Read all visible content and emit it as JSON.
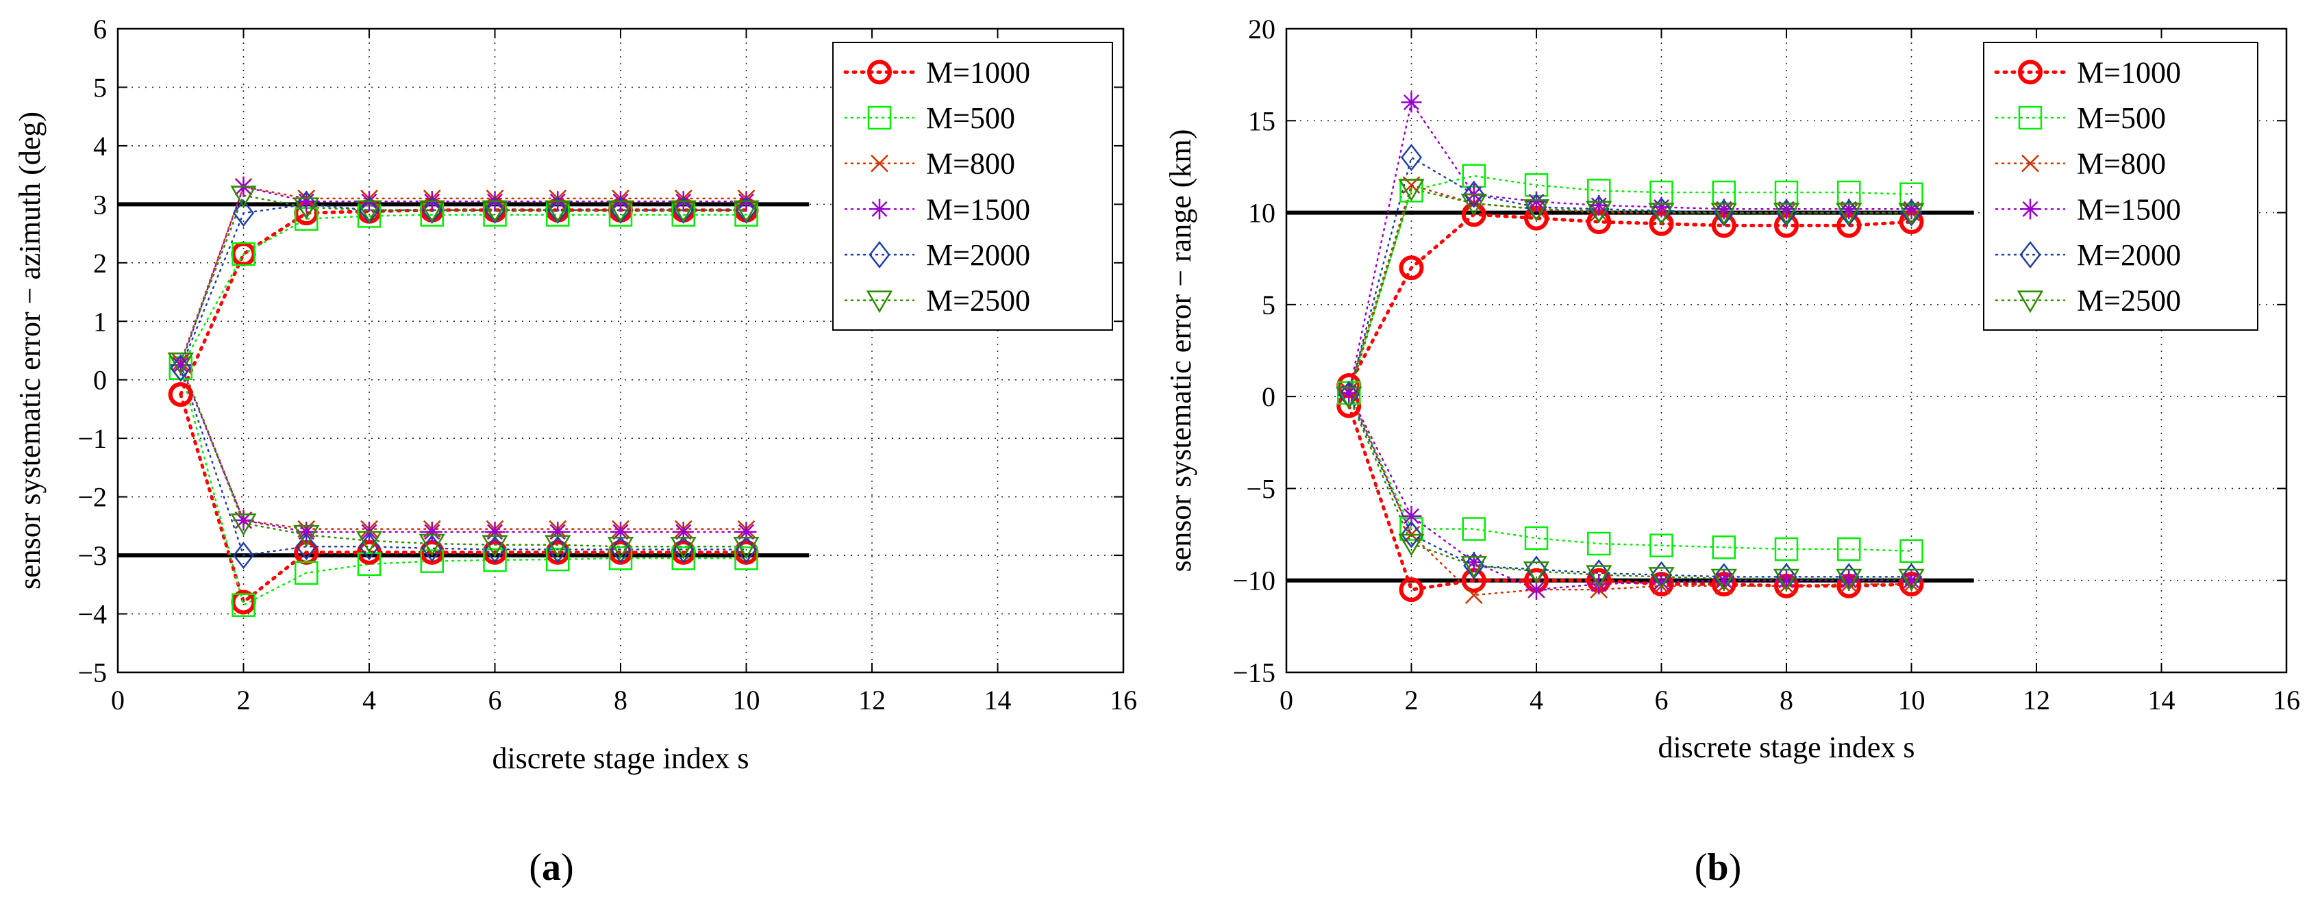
{
  "chart_data": [
    {
      "type": "line",
      "panel": "a",
      "caption": "(a)",
      "xlabel": "discrete stage index s",
      "ylabel": "sensor systematic error − azimuth (deg)",
      "xlim": [
        0,
        16
      ],
      "ylim": [
        -5,
        6
      ],
      "xticks": [
        0,
        2,
        4,
        6,
        8,
        10,
        12,
        14,
        16
      ],
      "yticks": [
        -5,
        -4,
        -3,
        -2,
        -1,
        0,
        1,
        2,
        3,
        4,
        5,
        6
      ],
      "ytick_labels": [
        "−5",
        "−4",
        "−3",
        "−2",
        "−1",
        "0",
        "1",
        "2",
        "3",
        "4",
        "5",
        "6"
      ],
      "grid": true,
      "legend_position": "top-right",
      "reference_lines": [
        {
          "y": 3,
          "x": [
            0,
            11
          ]
        },
        {
          "y": -3,
          "x": [
            0,
            11
          ]
        }
      ],
      "x": [
        1,
        2,
        3,
        4,
        5,
        6,
        7,
        8,
        9,
        10
      ],
      "series": [
        {
          "name": "M=1000",
          "color": "#ff0000",
          "marker": "circle",
          "upper": [
            -0.25,
            2.15,
            2.85,
            2.88,
            2.9,
            2.9,
            2.9,
            2.9,
            2.9,
            2.9
          ],
          "lower": [
            -0.25,
            -3.8,
            -2.95,
            -2.95,
            -2.95,
            -2.95,
            -2.95,
            -2.95,
            -2.95,
            -2.95
          ]
        },
        {
          "name": "M=500",
          "color": "#00ee00",
          "marker": "square",
          "upper": [
            0.2,
            2.15,
            2.75,
            2.8,
            2.82,
            2.82,
            2.82,
            2.82,
            2.82,
            2.82
          ],
          "lower": [
            0.2,
            -3.85,
            -3.3,
            -3.15,
            -3.1,
            -3.08,
            -3.07,
            -3.05,
            -3.05,
            -3.05
          ]
        },
        {
          "name": "M=800",
          "color": "#cc3300",
          "marker": "x",
          "upper": [
            0.3,
            3.3,
            3.1,
            3.1,
            3.1,
            3.1,
            3.1,
            3.1,
            3.1,
            3.1
          ],
          "lower": [
            0.3,
            -2.4,
            -2.55,
            -2.55,
            -2.55,
            -2.55,
            -2.55,
            -2.55,
            -2.55,
            -2.55
          ]
        },
        {
          "name": "M=1500",
          "color": "#9900cc",
          "marker": "star",
          "upper": [
            0.25,
            3.3,
            3.05,
            3.05,
            3.05,
            3.05,
            3.05,
            3.05,
            3.05,
            3.05
          ],
          "lower": [
            0.25,
            -2.4,
            -2.6,
            -2.6,
            -2.6,
            -2.6,
            -2.6,
            -2.6,
            -2.6,
            -2.6
          ]
        },
        {
          "name": "M=2000",
          "color": "#1f3fa6",
          "marker": "diamond",
          "upper": [
            0.2,
            2.85,
            3.0,
            2.9,
            2.9,
            2.9,
            2.9,
            2.9,
            2.9,
            2.9
          ],
          "lower": [
            0.2,
            -3.0,
            -2.85,
            -2.85,
            -2.88,
            -2.9,
            -2.9,
            -2.9,
            -2.9,
            -2.9
          ]
        },
        {
          "name": "M=2500",
          "color": "#2e8b00",
          "marker": "triangle-down",
          "upper": [
            0.3,
            3.15,
            2.95,
            2.9,
            2.9,
            2.9,
            2.9,
            2.9,
            2.9,
            2.9
          ],
          "lower": [
            0.3,
            -2.45,
            -2.65,
            -2.75,
            -2.8,
            -2.82,
            -2.82,
            -2.85,
            -2.85,
            -2.85
          ]
        }
      ]
    },
    {
      "type": "line",
      "panel": "b",
      "caption": "(b)",
      "xlabel": "discrete stage index s",
      "ylabel": "sensor systematic error − range (km)",
      "xlim": [
        0,
        16
      ],
      "ylim": [
        -15,
        20
      ],
      "xticks": [
        0,
        2,
        4,
        6,
        8,
        10,
        12,
        14,
        16
      ],
      "yticks": [
        -15,
        -10,
        -5,
        0,
        5,
        10,
        15,
        20
      ],
      "ytick_labels": [
        "−15",
        "−10",
        "−5",
        "0",
        "5",
        "10",
        "15",
        "20"
      ],
      "grid": true,
      "legend_position": "top-right",
      "reference_lines": [
        {
          "y": 10,
          "x": [
            0,
            11
          ]
        },
        {
          "y": -10,
          "x": [
            0,
            11
          ]
        }
      ],
      "x": [
        1,
        2,
        3,
        4,
        5,
        6,
        7,
        8,
        9,
        10
      ],
      "series": [
        {
          "name": "M=1000",
          "color": "#ff0000",
          "marker": "circle",
          "upper": [
            0.6,
            7.0,
            9.9,
            9.7,
            9.5,
            9.4,
            9.3,
            9.3,
            9.3,
            9.5
          ],
          "lower": [
            -0.5,
            -10.5,
            -10.0,
            -10.0,
            -10.0,
            -10.2,
            -10.2,
            -10.3,
            -10.3,
            -10.2
          ]
        },
        {
          "name": "M=500",
          "color": "#00ee00",
          "marker": "square",
          "upper": [
            0.2,
            11.2,
            12.0,
            11.5,
            11.2,
            11.1,
            11.1,
            11.1,
            11.1,
            11.0
          ],
          "lower": [
            0.2,
            -7.2,
            -7.2,
            -7.7,
            -8.0,
            -8.1,
            -8.2,
            -8.3,
            -8.3,
            -8.4
          ]
        },
        {
          "name": "M=800",
          "color": "#cc3300",
          "marker": "x",
          "upper": [
            0.3,
            11.5,
            10.5,
            10.2,
            10.0,
            10.0,
            10.0,
            10.0,
            10.0,
            10.0
          ],
          "lower": [
            0.3,
            -7.5,
            -10.8,
            -10.5,
            -10.5,
            -10.3,
            -10.3,
            -10.3,
            -10.2,
            -10.2
          ]
        },
        {
          "name": "M=1500",
          "color": "#9900cc",
          "marker": "star",
          "upper": [
            0.2,
            16.0,
            11.0,
            10.6,
            10.4,
            10.3,
            10.2,
            10.2,
            10.2,
            10.2
          ],
          "lower": [
            0.2,
            -6.5,
            -9.0,
            -10.5,
            -10.2,
            -10.1,
            -10.0,
            -10.0,
            -10.0,
            -10.0
          ]
        },
        {
          "name": "M=2000",
          "color": "#1f3fa6",
          "marker": "diamond",
          "upper": [
            0.1,
            13.0,
            11.0,
            10.3,
            10.2,
            10.1,
            10.0,
            10.0,
            10.0,
            10.0
          ],
          "lower": [
            0.1,
            -7.5,
            -9.2,
            -9.4,
            -9.6,
            -9.7,
            -9.8,
            -9.8,
            -9.8,
            -9.8
          ]
        },
        {
          "name": "M=2500",
          "color": "#2e8b00",
          "marker": "triangle-down",
          "upper": [
            0.0,
            11.3,
            10.5,
            10.2,
            10.1,
            10.0,
            10.0,
            10.0,
            10.0,
            10.0
          ],
          "lower": [
            0.0,
            -8.0,
            -9.2,
            -9.5,
            -9.7,
            -9.8,
            -9.9,
            -9.9,
            -9.9,
            -9.9
          ]
        }
      ]
    }
  ]
}
